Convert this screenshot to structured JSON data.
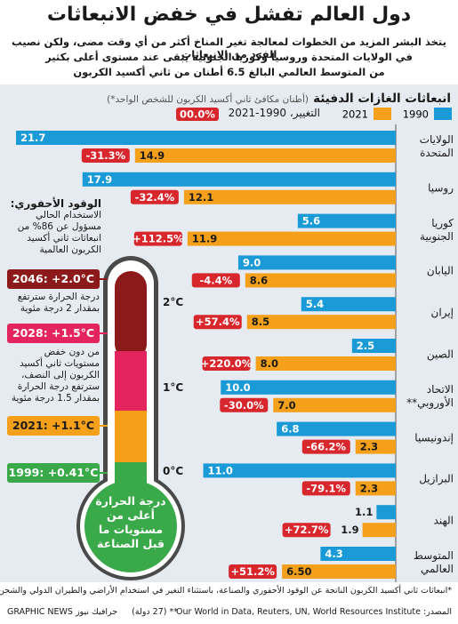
{
  "header": {
    "title": "دول العالم تفشل في خفض الانبعاثات",
    "subtitle": [
      "يتخذ البشر المزيد من الخطوات لمعالجة تغير المناخ أكثر من أي وقت مضى، ولكن نصيب الفرد من الانبعاثات",
      "في الولايات المتحدة وروسيا وكوريا الجنوبية يبقى عند مستوى أعلى بكثير",
      "من المتوسط العالمي البالغ 6.5 أطنان من ثاني أكسيد الكربون"
    ]
  },
  "chart_data": {
    "type": "bar",
    "orientation": "horizontal",
    "title": "انبعاثات الغازات الدفيئة",
    "subtitle": "(أطنان مكافئ ثاني أكسيد الكربون للشخص الواحد*)",
    "categories": [
      "الولايات المتحدة",
      "روسيا",
      "كوريا الجنوبية",
      "اليابان",
      "إيران",
      "الصين",
      "الاتحاد الأوروبي**",
      "إندونيسيا",
      "البرازيل",
      "الهند",
      "المتوسط العالمي"
    ],
    "series": [
      {
        "name": "1990",
        "color": "#1a9ad6",
        "values": [
          21.7,
          17.9,
          5.6,
          9.0,
          5.4,
          2.5,
          10.0,
          6.8,
          11.0,
          1.1,
          4.3
        ],
        "value_labels": [
          "21.7",
          "17.9",
          "5.6",
          "9.0",
          "5.4",
          "2.5",
          "10.0",
          "6.8",
          "11.0",
          "1.1",
          "4.3"
        ]
      },
      {
        "name": "2021",
        "color": "#f5a01a",
        "values": [
          14.9,
          12.1,
          11.9,
          8.6,
          8.5,
          8.0,
          7.0,
          2.3,
          2.3,
          1.9,
          6.5
        ],
        "value_labels": [
          "14.9",
          "12.1",
          "11.9",
          "8.6",
          "8.5",
          "8.0",
          "7.0",
          "2.3",
          "2.3",
          "1.9",
          "6.50"
        ]
      }
    ],
    "change": {
      "name": "التغيير، 1990-2021",
      "color": "#d7262c",
      "legend_sample": "00.0%",
      "values": [
        -31.3,
        -32.4,
        112.5,
        -4.4,
        57.4,
        220.0,
        -30.0,
        -66.2,
        -79.1,
        72.7,
        51.2
      ],
      "value_labels": [
        "-31.3%",
        "-32.4%",
        "+112.5%",
        "-4.4%",
        "+57.4%",
        "+220.0%",
        "-30.0%",
        "-66.2%",
        "-79.1%",
        "+72.7%",
        "+51.2%"
      ]
    }
  },
  "thermometer": {
    "fossil_title": "الوقود الأحفوري:",
    "fossil_text": "الاستخدام الحالي مسؤول عن 86% من انبعاثات ثاني أكسيد الكربون العالمية",
    "box_2046": "2046: +2.0°C",
    "text_2046": "درجة الحرارة سترتفع بمقدار 2 درجة مئوية",
    "box_2028": "2028: +1.5°C",
    "text_2028": "من دون خفض مستويات ثاني أكسيد الكربون إلى النصف، سترتفع درجة الحرارة بمقدار 1.5 درجة مئوية",
    "box_2021": "2021: +1.1°C",
    "box_1999": "1999: +0.41°C",
    "scale": [
      "2°C",
      "1°C",
      "0°C"
    ],
    "bulb_text": "درجة الحرارة أعلى من مستويات ما قبل الصناعة"
  },
  "footer": {
    "note": "*انبعاثات ثاني أكسيد الكربون الناتجة عن الوقود الأحفوري والصناعة، باستثناء التغير في استخدام الأراضي والطيران الدولي والشحن",
    "source_label": "المصدر:",
    "source": "Our World in Data, Reuters, UN, World Resources Institute",
    "eu_note": "** (27 دولة)",
    "credit": "GRAPHIC NEWS جرافيك نيوز"
  }
}
